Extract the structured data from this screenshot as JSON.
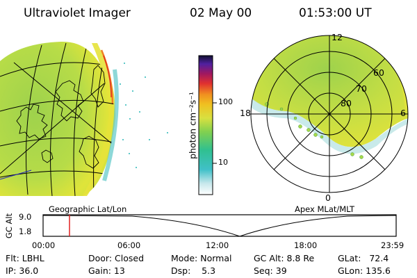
{
  "header": {
    "instrument": "Ultraviolet Imager",
    "date": "02 May 00",
    "time": "01:53:00 UT"
  },
  "colorbar": {
    "unit_label": "photon cm⁻²s⁻¹",
    "ticks": [
      "100",
      "10"
    ]
  },
  "globe_panel": {
    "label": "Geographic Lat/Lon"
  },
  "polar_panel": {
    "label": "Apex MLat/MLT",
    "mlt_labels": {
      "top": "12",
      "left": "18",
      "right": "6",
      "bottom": "0"
    },
    "lat_labels": [
      "60",
      "70",
      "80"
    ]
  },
  "altitude_strip": {
    "y_title": "GC Alt",
    "y_ticks": [
      "9.0",
      "1.8"
    ],
    "x_ticks": [
      "00:00",
      "06:00",
      "12:00",
      "18:00",
      "23:59"
    ]
  },
  "status": {
    "flt": "Flt: LBHL",
    "ip": "IP: 36.0",
    "door": "Door: Closed",
    "gain": "Gain: 13",
    "mode": "Mode: Normal",
    "dsp": "Dsp:    5.3",
    "gc_alt": "GC Alt: 8.8 Re",
    "seq": "Seq: 39",
    "glat": "GLat:   72.4",
    "glon": "GLon: 135.6"
  },
  "colors": {
    "background": "#ffffff",
    "emission_green": "#a8d84a",
    "emission_yellow": "#e8e63a",
    "low_cyan": "#5cc8c8",
    "marker_red": "#e02020"
  }
}
